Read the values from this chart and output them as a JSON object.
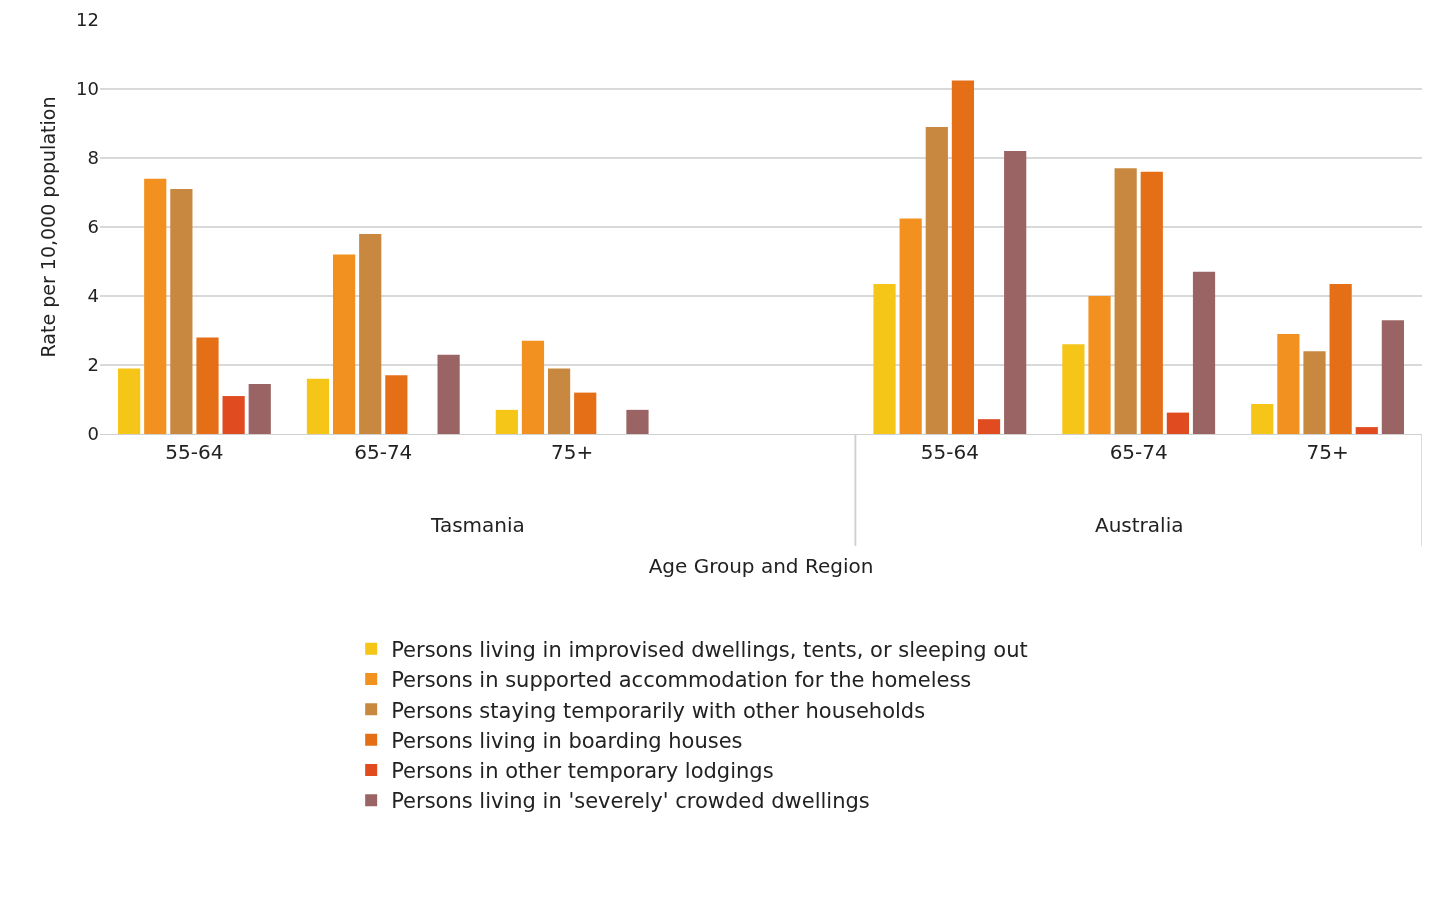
{
  "chart_data": {
    "type": "bar",
    "xlabel": "Age Group and Region",
    "ylabel": "Rate per 10,000 population",
    "categories": [
      "55-64",
      "65-74",
      "75+",
      null,
      "55-64",
      "65-74",
      "75+"
    ],
    "annotations": [
      "Tasmania",
      "Australia"
    ],
    "series": [
      {
        "name": "Persons living in improvised dwellings, tents, or sleeping out",
        "color": "#f5c518",
        "values": [
          1.9,
          1.6,
          0.7,
          null,
          4.35,
          2.6,
          0.87
        ]
      },
      {
        "name": "Persons in supported accommodation for the homeless",
        "color": "#f29120",
        "values": [
          7.4,
          5.2,
          2.7,
          null,
          6.25,
          4.0,
          2.9
        ]
      },
      {
        "name": "Persons staying temporarily with other households",
        "color": "#c9883f",
        "values": [
          7.1,
          5.8,
          1.9,
          null,
          8.9,
          7.7,
          2.4
        ]
      },
      {
        "name": "Persons living in boarding houses",
        "color": "#e56f17",
        "values": [
          2.8,
          1.7,
          1.2,
          null,
          10.25,
          7.6,
          4.35
        ]
      },
      {
        "name": "Persons in other temporary lodgings",
        "color": "#e04b20",
        "values": [
          1.1,
          0,
          0,
          null,
          0.43,
          0.62,
          0.2
        ]
      },
      {
        "name": "Persons living in 'severely' crowded dwellings",
        "color": "#9a6464",
        "values": [
          1.45,
          2.3,
          0.7,
          null,
          8.2,
          4.7,
          3.3
        ]
      }
    ],
    "ylim": [
      0,
      12
    ],
    "yticks": [
      0,
      2,
      4,
      6,
      8,
      10,
      12
    ],
    "grid": "y",
    "legend": "bottom"
  }
}
